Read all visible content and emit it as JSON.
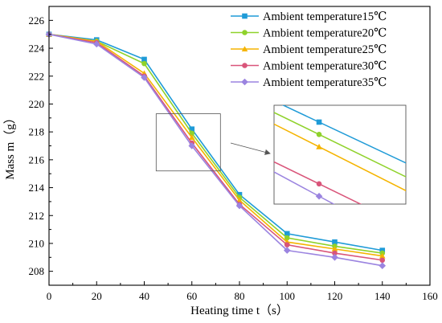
{
  "chart_data": {
    "type": "line",
    "title": "",
    "xlabel": "Heating time t（s）",
    "ylabel": "Mass m（g）",
    "xlim": [
      0,
      160
    ],
    "ylim": [
      207,
      227
    ],
    "xticks": [
      0,
      20,
      40,
      60,
      80,
      100,
      120,
      140,
      160
    ],
    "yticks": [
      208,
      210,
      212,
      214,
      216,
      218,
      220,
      222,
      224,
      226
    ],
    "grid": false,
    "legend_position": "top-right",
    "x": [
      0,
      20,
      40,
      60,
      80,
      100,
      120,
      140
    ],
    "series": [
      {
        "name": "Ambient temperature15℃",
        "color": "#1f9bd7",
        "marker": "square",
        "values": [
          225.0,
          224.6,
          223.2,
          218.2,
          213.5,
          210.7,
          210.1,
          209.5
        ]
      },
      {
        "name": "Ambient temperature20℃",
        "color": "#8fd22b",
        "marker": "circle",
        "values": [
          225.0,
          224.5,
          222.9,
          217.9,
          213.3,
          210.4,
          209.8,
          209.3
        ]
      },
      {
        "name": "Ambient temperature25℃",
        "color": "#f5b400",
        "marker": "triangle",
        "values": [
          225.0,
          224.5,
          222.2,
          217.6,
          213.1,
          210.1,
          209.6,
          209.1
        ]
      },
      {
        "name": "Ambient temperature30℃",
        "color": "#d9557a",
        "marker": "circle",
        "values": [
          225.0,
          224.4,
          222.0,
          217.2,
          212.8,
          209.9,
          209.3,
          208.8
        ]
      },
      {
        "name": "Ambient temperature35℃",
        "color": "#9b84e0",
        "marker": "diamond",
        "values": [
          225.0,
          224.3,
          221.9,
          217.0,
          212.7,
          209.5,
          209.0,
          208.4
        ]
      }
    ],
    "inset": {
      "source_region": {
        "x": [
          45,
          72
        ],
        "y": [
          215.2,
          219.3
        ]
      },
      "marker_x": 125,
      "marker_values": [
        219.7,
        218.6,
        217.5,
        214.2,
        213.1
      ]
    }
  }
}
